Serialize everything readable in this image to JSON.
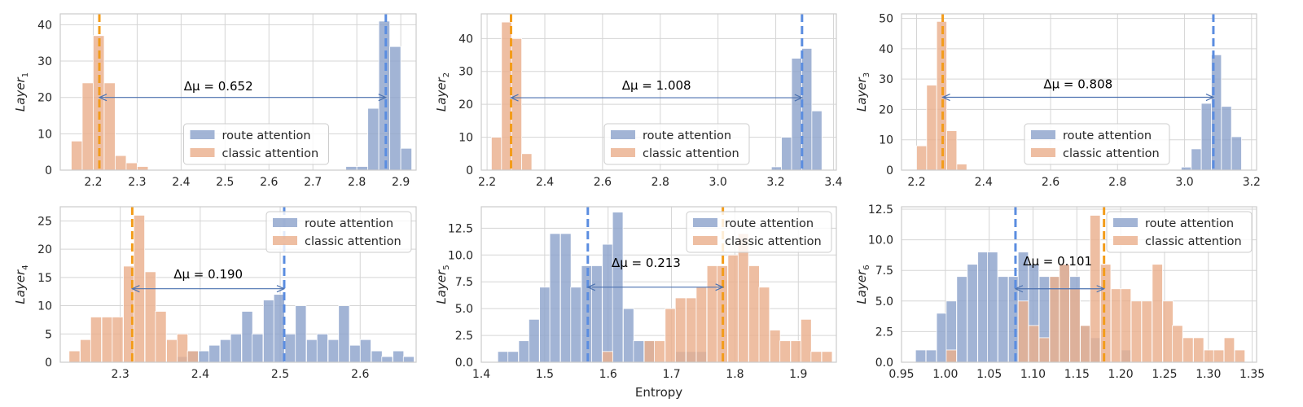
{
  "chart_data": [
    {
      "type": "histogram",
      "ylabel": "Layer",
      "ylabel_sub": "1",
      "xlabel": "",
      "xlim": [
        2.125,
        2.935
      ],
      "ylim": [
        0,
        43
      ],
      "xticks": [
        2.2,
        2.3,
        2.4,
        2.5,
        2.6,
        2.7,
        2.8,
        2.9
      ],
      "xtick_labels": [
        "2.2",
        "2.3",
        "2.4",
        "2.5",
        "2.6",
        "2.7",
        "2.8",
        "2.9"
      ],
      "yticks": [
        0,
        10,
        20,
        30,
        40
      ],
      "ytick_labels": [
        "0",
        "10",
        "20",
        "30",
        "40"
      ],
      "series": [
        {
          "name": "route attention",
          "color": "#8da3cc",
          "mean": 2.866,
          "mean_color": "#5b8de0",
          "bin_width": 0.025,
          "bins": [
            [
              2.775,
              1
            ],
            [
              2.8,
              1
            ],
            [
              2.825,
              17
            ],
            [
              2.85,
              41
            ],
            [
              2.875,
              34
            ],
            [
              2.9,
              6
            ]
          ]
        },
        {
          "name": "classic attention",
          "color": "#eab08d",
          "mean": 2.214,
          "mean_color": "#f39c1a",
          "bin_width": 0.025,
          "bins": [
            [
              2.15,
              8
            ],
            [
              2.175,
              24
            ],
            [
              2.2,
              37
            ],
            [
              2.225,
              24
            ],
            [
              2.25,
              4
            ],
            [
              2.275,
              2
            ],
            [
              2.3,
              1
            ]
          ]
        }
      ],
      "annotation": {
        "text": "Δμ = 0.652",
        "x_from": 2.214,
        "x_to": 2.866,
        "y": 20,
        "text_x": 2.485,
        "text_y": 22
      },
      "legend_pos": "lower-center"
    },
    {
      "type": "histogram",
      "ylabel": "Layer",
      "ylabel_sub": "2",
      "xlabel": "",
      "xlim": [
        2.18,
        3.41
      ],
      "ylim": [
        0,
        47.5
      ],
      "xticks": [
        2.2,
        2.4,
        2.6,
        2.8,
        3.0,
        3.2,
        3.4
      ],
      "xtick_labels": [
        "2.2",
        "2.4",
        "2.6",
        "2.8",
        "3.0",
        "3.2",
        "3.4"
      ],
      "yticks": [
        0,
        10,
        20,
        30,
        40
      ],
      "ytick_labels": [
        "0",
        "10",
        "20",
        "30",
        "40"
      ],
      "series": [
        {
          "name": "route attention",
          "color": "#8da3cc",
          "mean": 3.291,
          "mean_color": "#5b8de0",
          "bin_width": 0.035,
          "bins": [
            [
              3.185,
              1
            ],
            [
              3.22,
              10
            ],
            [
              3.255,
              34
            ],
            [
              3.29,
              37
            ],
            [
              3.325,
              18
            ]
          ]
        },
        {
          "name": "classic attention",
          "color": "#eab08d",
          "mean": 2.283,
          "mean_color": "#f39c1a",
          "bin_width": 0.035,
          "bins": [
            [
              2.215,
              10
            ],
            [
              2.25,
              45
            ],
            [
              2.285,
              40
            ],
            [
              2.32,
              5
            ]
          ]
        }
      ],
      "annotation": {
        "text": "Δμ = 1.008",
        "x_from": 2.283,
        "x_to": 3.291,
        "y": 22,
        "text_x": 2.787,
        "text_y": 24.5
      },
      "legend_pos": "lower-center"
    },
    {
      "type": "histogram",
      "ylabel": "Layer",
      "ylabel_sub": "3",
      "xlabel": "",
      "xlim": [
        2.155,
        3.215
      ],
      "ylim": [
        0,
        51.5
      ],
      "xticks": [
        2.2,
        2.4,
        2.6,
        2.8,
        3.0,
        3.2
      ],
      "xtick_labels": [
        "2.2",
        "2.4",
        "2.6",
        "2.8",
        "3.0",
        "3.2"
      ],
      "yticks": [
        0,
        10,
        20,
        30,
        40,
        50
      ],
      "ytick_labels": [
        "0",
        "10",
        "20",
        "30",
        "40",
        "50"
      ],
      "series": [
        {
          "name": "route attention",
          "color": "#8da3cc",
          "mean": 3.086,
          "mean_color": "#5b8de0",
          "bin_width": 0.03,
          "bins": [
            [
              2.99,
              1
            ],
            [
              3.02,
              7
            ],
            [
              3.05,
              22
            ],
            [
              3.08,
              38
            ],
            [
              3.11,
              21
            ],
            [
              3.14,
              11
            ]
          ]
        },
        {
          "name": "classic attention",
          "color": "#eab08d",
          "mean": 2.278,
          "mean_color": "#f39c1a",
          "bin_width": 0.03,
          "bins": [
            [
              2.2,
              8
            ],
            [
              2.23,
              28
            ],
            [
              2.26,
              49
            ],
            [
              2.29,
              13
            ],
            [
              2.32,
              2
            ]
          ]
        }
      ],
      "annotation": {
        "text": "Δμ = 0.808",
        "x_from": 2.278,
        "x_to": 3.086,
        "y": 24,
        "text_x": 2.682,
        "text_y": 27
      },
      "legend_pos": "lower-center"
    },
    {
      "type": "histogram",
      "ylabel": "Layer",
      "ylabel_sub": "4",
      "xlabel": "",
      "xlim": [
        2.225,
        2.67
      ],
      "ylim": [
        0,
        27.5
      ],
      "xticks": [
        2.3,
        2.4,
        2.5,
        2.6
      ],
      "xtick_labels": [
        "2.3",
        "2.4",
        "2.5",
        "2.6"
      ],
      "yticks": [
        0,
        5,
        10,
        15,
        20,
        25
      ],
      "ytick_labels": [
        "0",
        "5",
        "10",
        "15",
        "20",
        "25"
      ],
      "series": [
        {
          "name": "route attention",
          "color": "#8da3cc",
          "mean": 2.505,
          "mean_color": "#5b8de0",
          "bin_width": 0.0135,
          "bins": [
            [
              2.371,
              1
            ],
            [
              2.384,
              2
            ],
            [
              2.398,
              2
            ],
            [
              2.411,
              3
            ],
            [
              2.425,
              4
            ],
            [
              2.438,
              5
            ],
            [
              2.452,
              9
            ],
            [
              2.465,
              5
            ],
            [
              2.479,
              11
            ],
            [
              2.492,
              12
            ],
            [
              2.506,
              5
            ],
            [
              2.519,
              10
            ],
            [
              2.533,
              4
            ],
            [
              2.546,
              5
            ],
            [
              2.56,
              4
            ],
            [
              2.573,
              10
            ],
            [
              2.587,
              3
            ],
            [
              2.6,
              4
            ],
            [
              2.614,
              2
            ],
            [
              2.627,
              1
            ],
            [
              2.641,
              2
            ],
            [
              2.654,
              1
            ]
          ]
        },
        {
          "name": "classic attention",
          "color": "#eab08d",
          "mean": 2.315,
          "mean_color": "#f39c1a",
          "bin_width": 0.0135,
          "bins": [
            [
              2.236,
              2
            ],
            [
              2.25,
              4
            ],
            [
              2.263,
              8
            ],
            [
              2.277,
              8
            ],
            [
              2.29,
              8
            ],
            [
              2.304,
              17
            ],
            [
              2.317,
              26
            ],
            [
              2.331,
              16
            ],
            [
              2.344,
              9
            ],
            [
              2.358,
              4
            ],
            [
              2.371,
              5
            ],
            [
              2.384,
              2
            ]
          ]
        }
      ],
      "annotation": {
        "text": "Δμ = 0.190",
        "x_from": 2.315,
        "x_to": 2.505,
        "y": 13,
        "text_x": 2.41,
        "text_y": 14.8
      },
      "legend_pos": "upper-right"
    },
    {
      "type": "histogram",
      "ylabel": "Layer",
      "ylabel_sub": "5",
      "xlabel": "Entropy",
      "xlim": [
        1.4,
        1.96
      ],
      "ylim": [
        0,
        14.5
      ],
      "xticks": [
        1.4,
        1.5,
        1.6,
        1.7,
        1.8,
        1.9
      ],
      "xtick_labels": [
        "1.4",
        "1.5",
        "1.6",
        "1.7",
        "1.8",
        "1.9"
      ],
      "yticks": [
        0,
        2.5,
        5.0,
        7.5,
        10.0,
        12.5
      ],
      "ytick_labels": [
        "0.0",
        "2.5",
        "5.0",
        "7.5",
        "10.0",
        "12.5"
      ],
      "series": [
        {
          "name": "route attention",
          "color": "#8da3cc",
          "mean": 1.568,
          "mean_color": "#5b8de0",
          "bin_width": 0.0165,
          "bins": [
            [
              1.426,
              1
            ],
            [
              1.442,
              1
            ],
            [
              1.459,
              2
            ],
            [
              1.475,
              4
            ],
            [
              1.492,
              7
            ],
            [
              1.508,
              12
            ],
            [
              1.525,
              12
            ],
            [
              1.541,
              7
            ],
            [
              1.558,
              9
            ],
            [
              1.574,
              9
            ],
            [
              1.591,
              11
            ],
            [
              1.607,
              14
            ],
            [
              1.624,
              5
            ],
            [
              1.64,
              2
            ],
            [
              1.657,
              2
            ],
            [
              1.673,
              0
            ],
            [
              1.69,
              0
            ],
            [
              1.706,
              1
            ],
            [
              1.723,
              1
            ],
            [
              1.739,
              1
            ]
          ]
        },
        {
          "name": "classic attention",
          "color": "#eab08d",
          "mean": 1.781,
          "mean_color": "#f39c1a",
          "bin_width": 0.0165,
          "bins": [
            [
              1.591,
              1
            ],
            [
              1.607,
              0
            ],
            [
              1.624,
              0
            ],
            [
              1.64,
              0
            ],
            [
              1.657,
              2
            ],
            [
              1.673,
              2
            ],
            [
              1.69,
              5
            ],
            [
              1.706,
              6
            ],
            [
              1.723,
              6
            ],
            [
              1.739,
              7
            ],
            [
              1.756,
              9
            ],
            [
              1.772,
              9
            ],
            [
              1.789,
              10
            ],
            [
              1.805,
              12
            ],
            [
              1.822,
              9
            ],
            [
              1.838,
              7
            ],
            [
              1.855,
              3
            ],
            [
              1.871,
              2
            ],
            [
              1.888,
              2
            ],
            [
              1.904,
              4
            ],
            [
              1.92,
              1
            ],
            [
              1.937,
              1
            ]
          ]
        }
      ],
      "annotation": {
        "text": "Δμ = 0.213",
        "x_from": 1.568,
        "x_to": 1.781,
        "y": 7,
        "text_x": 1.66,
        "text_y": 8.9
      },
      "legend_pos": "upper-right"
    },
    {
      "type": "histogram",
      "ylabel": "Layer",
      "ylabel_sub": "6",
      "xlabel": "",
      "xlim": [
        0.95,
        1.355
      ],
      "ylim": [
        0,
        12.7
      ],
      "xticks": [
        0.95,
        1.0,
        1.05,
        1.1,
        1.15,
        1.2,
        1.25,
        1.3,
        1.35
      ],
      "xtick_labels": [
        "0.95",
        "1.00",
        "1.05",
        "1.10",
        "1.15",
        "1.20",
        "1.25",
        "1.30",
        "1.35"
      ],
      "yticks": [
        0,
        2.5,
        5.0,
        7.5,
        10.0,
        12.5
      ],
      "ytick_labels": [
        "0.0",
        "2.5",
        "5.0",
        "7.5",
        "10.0",
        "12.5"
      ],
      "series": [
        {
          "name": "route attention",
          "color": "#8da3cc",
          "mean": 1.08,
          "mean_color": "#5b8de0",
          "bin_width": 0.0117,
          "bins": [
            [
              0.966,
              1
            ],
            [
              0.978,
              1
            ],
            [
              0.99,
              4
            ],
            [
              1.001,
              5
            ],
            [
              1.013,
              7
            ],
            [
              1.025,
              8
            ],
            [
              1.037,
              9
            ],
            [
              1.048,
              9
            ],
            [
              1.06,
              7
            ],
            [
              1.072,
              7
            ],
            [
              1.083,
              9
            ],
            [
              1.095,
              8
            ],
            [
              1.107,
              7
            ],
            [
              1.119,
              7
            ],
            [
              1.13,
              8
            ],
            [
              1.142,
              7
            ],
            [
              1.154,
              3
            ],
            [
              1.165,
              2
            ],
            [
              1.177,
              0
            ],
            [
              1.189,
              0
            ],
            [
              1.2,
              1
            ]
          ]
        },
        {
          "name": "classic attention",
          "color": "#eab08d",
          "mean": 1.181,
          "mean_color": "#f39c1a",
          "bin_width": 0.0117,
          "bins": [
            [
              1.001,
              1
            ],
            [
              1.013,
              0
            ],
            [
              1.025,
              0
            ],
            [
              1.037,
              0
            ],
            [
              1.048,
              0
            ],
            [
              1.06,
              0
            ],
            [
              1.072,
              0
            ],
            [
              1.083,
              5
            ],
            [
              1.095,
              3
            ],
            [
              1.107,
              2
            ],
            [
              1.119,
              7
            ],
            [
              1.13,
              8
            ],
            [
              1.142,
              6
            ],
            [
              1.154,
              3
            ],
            [
              1.165,
              12
            ],
            [
              1.177,
              8
            ],
            [
              1.189,
              6
            ],
            [
              1.2,
              6
            ],
            [
              1.212,
              5
            ],
            [
              1.224,
              5
            ],
            [
              1.236,
              8
            ],
            [
              1.248,
              5
            ],
            [
              1.259,
              3
            ],
            [
              1.271,
              2
            ],
            [
              1.283,
              2
            ],
            [
              1.295,
              1
            ],
            [
              1.306,
              1
            ],
            [
              1.318,
              2
            ],
            [
              1.33,
              1
            ]
          ]
        }
      ],
      "annotation": {
        "text": "Δμ = 0.101",
        "x_from": 1.08,
        "x_to": 1.181,
        "y": 6,
        "text_x": 1.128,
        "text_y": 7.9
      },
      "legend_pos": "upper-right"
    }
  ]
}
